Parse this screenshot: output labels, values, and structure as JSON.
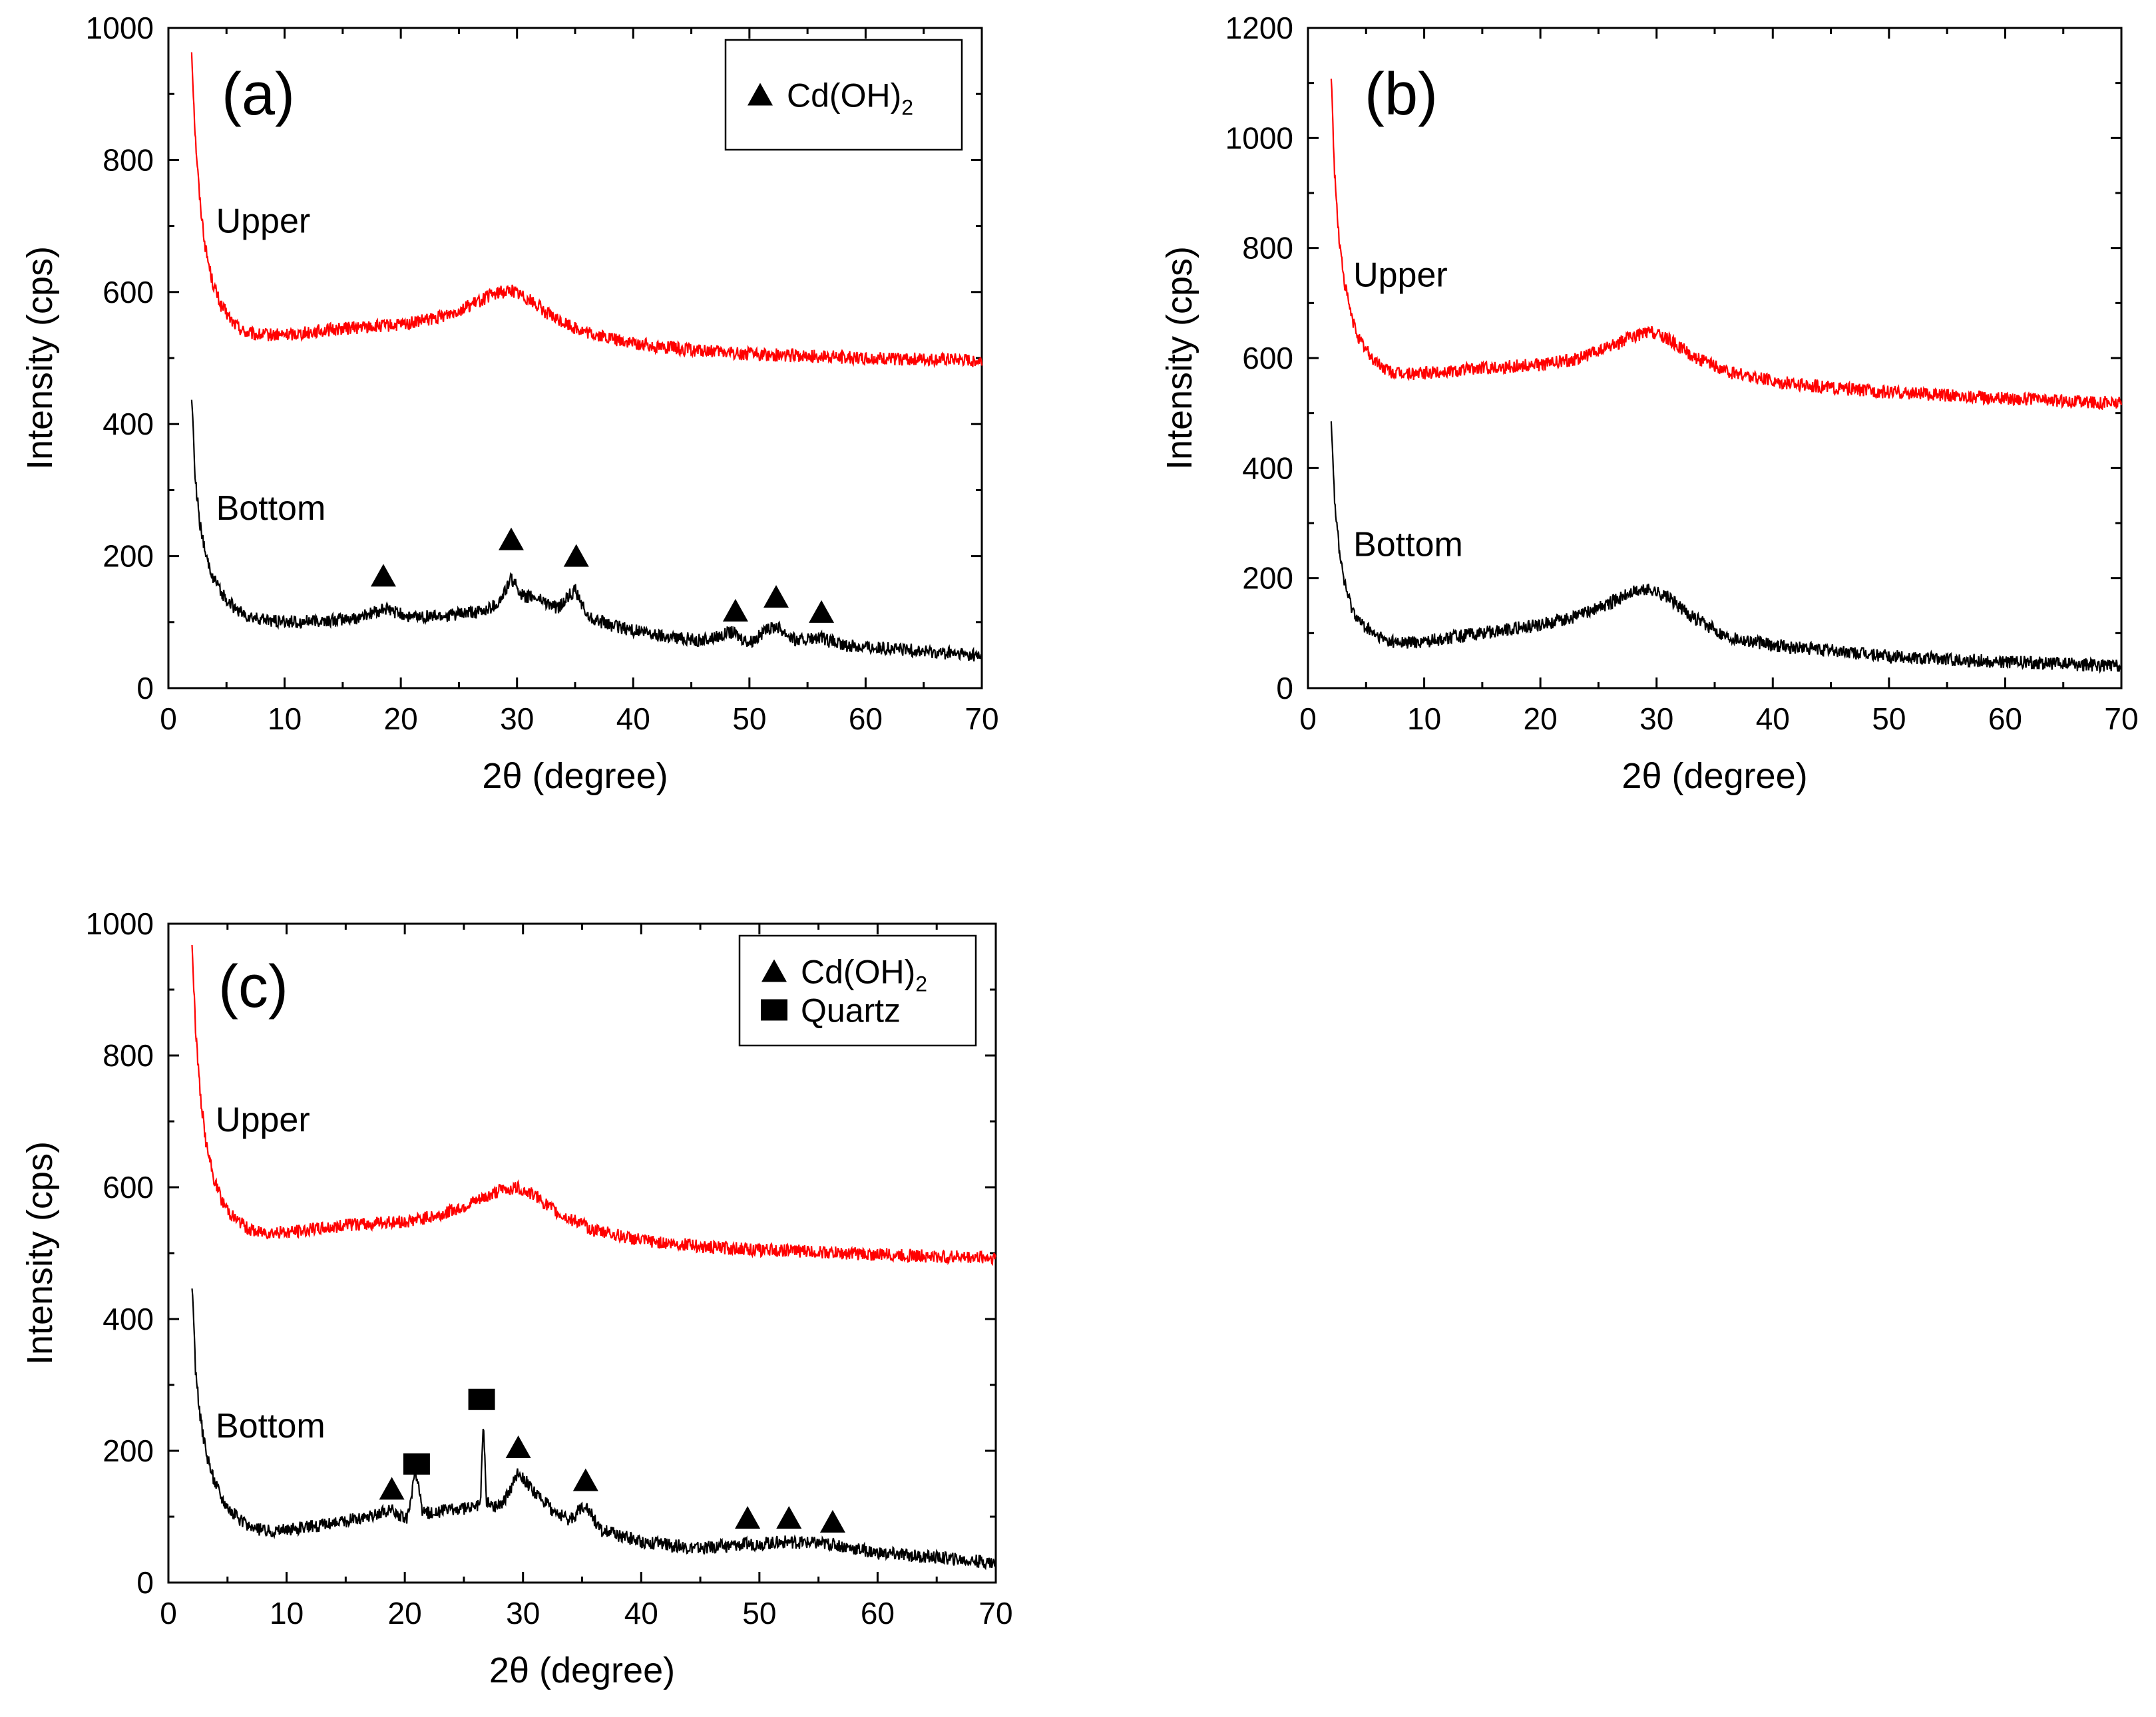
{
  "figure": {
    "axis_title_y": "Intensity (cps)",
    "axis_title_x_symbol": "2θ",
    "axis_title_x_rest": " (degree)"
  },
  "chart_data": [
    {
      "type": "line",
      "panel_label": "(a)",
      "title": "",
      "xlabel": "2θ (degree)",
      "ylabel": "Intensity (cps)",
      "xlim": [
        0,
        70
      ],
      "ylim": [
        0,
        1000
      ],
      "x_ticks": [
        0,
        10,
        20,
        30,
        40,
        50,
        60,
        70
      ],
      "y_ticks": [
        0,
        200,
        400,
        600,
        800,
        1000
      ],
      "grid": false,
      "colors": {
        "Upper": "#ff0000",
        "Bottom": "#000000"
      },
      "series_labels": [
        {
          "text": "Upper",
          "x": 4.1,
          "y": 690
        },
        {
          "text": "Bottom",
          "x": 4.1,
          "y": 255
        }
      ],
      "series": [
        {
          "name": "Upper",
          "x": [
            2,
            2.3,
            2.7,
            3.2,
            3.8,
            4.5,
            5.5,
            6.5,
            7.5,
            10,
            15,
            20,
            23,
            26,
            28,
            29.5,
            31,
            33,
            36,
            40,
            45,
            50,
            55,
            60,
            65,
            70
          ],
          "values": [
            965,
            840,
            740,
            665,
            615,
            580,
            555,
            540,
            535,
            535,
            545,
            550,
            560,
            580,
            597,
            603,
            590,
            562,
            538,
            522,
            512,
            506,
            503,
            500,
            498,
            496
          ]
        },
        {
          "name": "Bottom",
          "x": [
            2,
            2.3,
            2.7,
            3.2,
            3.8,
            4.5,
            5.5,
            6.5,
            7.5,
            10,
            14,
            16,
            18.5,
            21,
            24,
            27,
            28.5,
            29.5,
            30.5,
            32,
            33.5,
            35,
            36,
            38,
            42,
            46,
            48.5,
            50,
            52.3,
            54,
            56.2,
            58,
            62,
            66,
            70
          ],
          "values": [
            445,
            320,
            250,
            200,
            170,
            145,
            125,
            110,
            105,
            100,
            102,
            105,
            120,
            108,
            110,
            115,
            130,
            165,
            140,
            135,
            120,
            150,
            110,
            95,
            80,
            72,
            85,
            70,
            95,
            72,
            75,
            65,
            60,
            55,
            48
          ]
        }
      ],
      "markers": [
        {
          "type": "triangle",
          "x": 18.5,
          "y": 170
        },
        {
          "type": "triangle",
          "x": 29.5,
          "y": 225
        },
        {
          "type": "triangle",
          "x": 35.1,
          "y": 200
        },
        {
          "type": "triangle",
          "x": 48.8,
          "y": 117
        },
        {
          "type": "triangle",
          "x": 52.3,
          "y": 138
        },
        {
          "type": "triangle",
          "x": 56.2,
          "y": 115
        }
      ],
      "legend": [
        {
          "marker": "triangle",
          "label": "Cd(OH)",
          "subscript": "2"
        }
      ],
      "legend_position": "top-right"
    },
    {
      "type": "line",
      "panel_label": "(b)",
      "title": "",
      "xlabel": "2θ (degree)",
      "ylabel": "Intensity (cps)",
      "xlim": [
        0,
        70
      ],
      "ylim": [
        0,
        1200
      ],
      "x_ticks": [
        0,
        10,
        20,
        30,
        40,
        50,
        60,
        70
      ],
      "y_ticks": [
        0,
        200,
        400,
        600,
        800,
        1000,
        1200
      ],
      "grid": false,
      "colors": {
        "Upper": "#ff0000",
        "Bottom": "#000000"
      },
      "series_labels": [
        {
          "text": "Upper",
          "x": 3.9,
          "y": 730
        },
        {
          "text": "Bottom",
          "x": 3.9,
          "y": 240
        }
      ],
      "series": [
        {
          "name": "Upper",
          "x": [
            2,
            2.3,
            2.7,
            3.2,
            3.8,
            4.5,
            5.5,
            6.5,
            7.5,
            10,
            15,
            20,
            23,
            26,
            28,
            29.5,
            31,
            33,
            36,
            40,
            45,
            50,
            55,
            60,
            65,
            70
          ],
          "values": [
            1110,
            930,
            810,
            730,
            670,
            630,
            600,
            582,
            572,
            572,
            582,
            588,
            598,
            620,
            640,
            648,
            635,
            605,
            575,
            558,
            546,
            538,
            532,
            527,
            522,
            518
          ]
        },
        {
          "name": "Bottom",
          "x": [
            2,
            2.3,
            2.7,
            3.2,
            3.8,
            4.5,
            5.5,
            6.5,
            7.5,
            10,
            15,
            20,
            23,
            26,
            28,
            29.5,
            31,
            33,
            36,
            40,
            45,
            50,
            55,
            60,
            65,
            70
          ],
          "values": [
            495,
            340,
            250,
            185,
            145,
            120,
            100,
            88,
            82,
            85,
            100,
            115,
            130,
            155,
            175,
            180,
            165,
            130,
            95,
            78,
            68,
            58,
            52,
            48,
            44,
            40
          ]
        }
      ],
      "markers": [],
      "legend": [],
      "legend_position": "none"
    },
    {
      "type": "line",
      "panel_label": "(c)",
      "title": "",
      "xlabel": "2θ (degree)",
      "ylabel": "Intensity (cps)",
      "xlim": [
        0,
        70
      ],
      "ylim": [
        0,
        1000
      ],
      "x_ticks": [
        0,
        10,
        20,
        30,
        40,
        50,
        60,
        70
      ],
      "y_ticks": [
        0,
        200,
        400,
        600,
        800,
        1000
      ],
      "grid": false,
      "colors": {
        "Upper": "#ff0000",
        "Bottom": "#000000"
      },
      "series_labels": [
        {
          "text": "Upper",
          "x": 4.0,
          "y": 685
        },
        {
          "text": "Bottom",
          "x": 4.0,
          "y": 220
        }
      ],
      "series": [
        {
          "name": "Upper",
          "x": [
            2,
            2.3,
            2.7,
            3.2,
            3.8,
            4.5,
            5.5,
            6.5,
            7.5,
            10,
            15,
            20,
            23,
            26,
            28,
            29.5,
            31,
            33,
            36,
            40,
            45,
            50,
            55,
            60,
            65,
            70
          ],
          "values": [
            970,
            840,
            740,
            665,
            615,
            580,
            555,
            540,
            532,
            532,
            542,
            548,
            558,
            578,
            595,
            600,
            588,
            560,
            535,
            520,
            510,
            505,
            502,
            498,
            495,
            493
          ]
        },
        {
          "name": "Bottom",
          "x": [
            2,
            2.3,
            2.7,
            3.2,
            3.8,
            4.5,
            5.5,
            6.5,
            7.5,
            10,
            14,
            17,
            18.9,
            20.2,
            20.9,
            21.5,
            24,
            26,
            26.4,
            26.65,
            26.9,
            27.5,
            28.5,
            29.6,
            30.8,
            32.5,
            34,
            35.3,
            36.5,
            40,
            45,
            49,
            52.5,
            56.2,
            60,
            65,
            70
          ],
          "values": [
            455,
            320,
            250,
            195,
            160,
            130,
            105,
            88,
            80,
            80,
            90,
            100,
            110,
            95,
            170,
            105,
            110,
            115,
            120,
            245,
            125,
            115,
            125,
            170,
            140,
            110,
            95,
            120,
            80,
            62,
            52,
            58,
            62,
            58,
            45,
            38,
            30
          ]
        }
      ],
      "markers": [
        {
          "type": "triangle",
          "x": 18.9,
          "y": 142
        },
        {
          "type": "square",
          "x": 21.0,
          "y": 180
        },
        {
          "type": "square",
          "x": 26.5,
          "y": 278
        },
        {
          "type": "triangle",
          "x": 29.6,
          "y": 205
        },
        {
          "type": "triangle",
          "x": 35.3,
          "y": 155
        },
        {
          "type": "triangle",
          "x": 49.0,
          "y": 98
        },
        {
          "type": "triangle",
          "x": 52.5,
          "y": 98
        },
        {
          "type": "triangle",
          "x": 56.2,
          "y": 92
        }
      ],
      "legend": [
        {
          "marker": "triangle",
          "label": "Cd(OH)",
          "subscript": "2"
        },
        {
          "marker": "square",
          "label": "Quartz",
          "subscript": ""
        }
      ],
      "legend_position": "top-right"
    }
  ]
}
